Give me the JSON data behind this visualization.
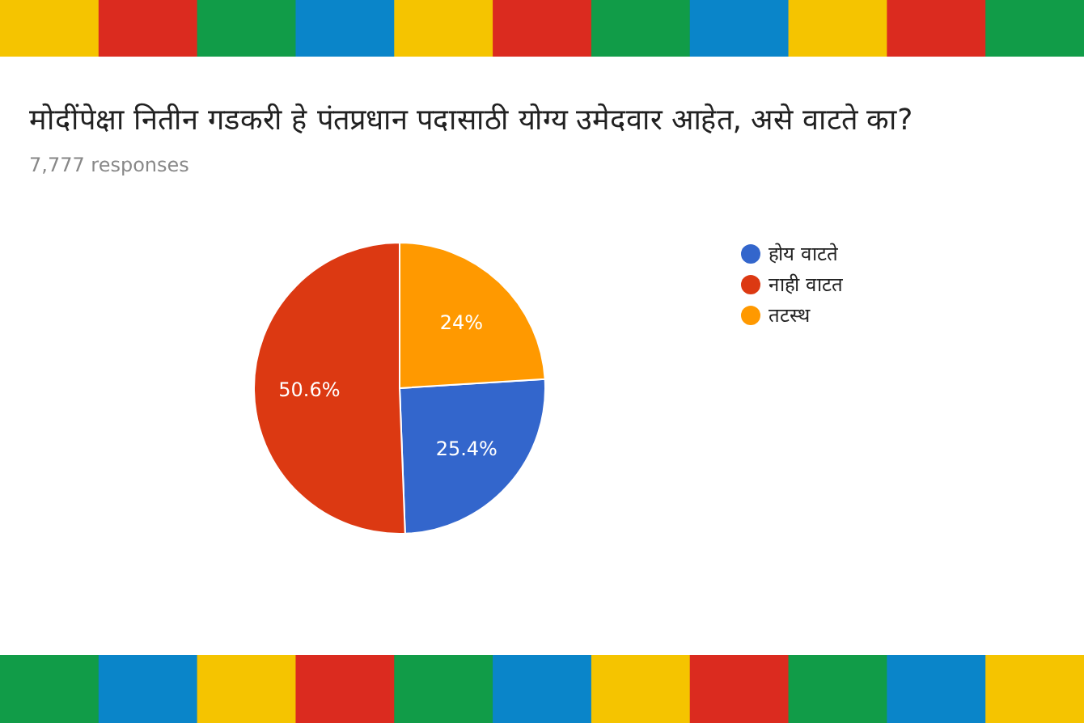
{
  "chart_data": {
    "type": "pie",
    "title": "मोदींपेक्षा नितीन गडकरी हे पंतप्रधान पदासाठी योग्य उमेदवार आहेत, असे वाटते का?",
    "subtitle": "7,777 responses",
    "categories": [
      "होय वाटते",
      "नाही वाटत",
      "तटस्थ"
    ],
    "values": [
      25.4,
      50.6,
      24
    ],
    "value_labels": [
      "25.4%",
      "50.6%",
      "24%"
    ],
    "colors": [
      "#3366cc",
      "#dc3912",
      "#ff9900"
    ],
    "legend": "right"
  }
}
